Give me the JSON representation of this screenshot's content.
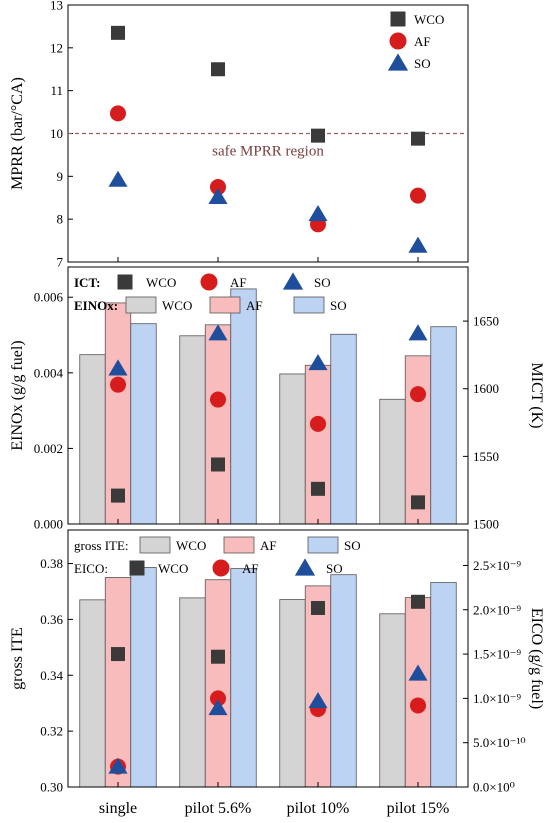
{
  "chart_data": [
    {
      "type": "scatter",
      "categories": [
        "single",
        "pilot 5.6%",
        "pilot 10%",
        "pilot 15%"
      ],
      "ylabel": "MPRR (bar/°CA)",
      "ylim": [
        7,
        13
      ],
      "yticks": [
        "7",
        "8",
        "9",
        "10",
        "11",
        "12",
        "13"
      ],
      "series": [
        {
          "name": "WCO",
          "marker": "square",
          "color": "#3a3a3a",
          "values": [
            12.35,
            11.5,
            9.95,
            9.88
          ]
        },
        {
          "name": "AF",
          "marker": "circle",
          "color": "#d61c1c",
          "values": [
            10.47,
            8.75,
            7.88,
            8.55
          ]
        },
        {
          "name": "SO",
          "marker": "triangle",
          "color": "#1f4e9c",
          "values": [
            8.92,
            8.52,
            8.12,
            7.38
          ]
        }
      ],
      "reference_line": {
        "value": 10,
        "label": "safe MPRR region",
        "color": "#a05c5c"
      },
      "legend": "top-right"
    },
    {
      "type": "bar",
      "categories": [
        "single",
        "pilot 5.6%",
        "pilot 10%",
        "pilot 15%"
      ],
      "ylabel": "EINOx (g/g fuel)",
      "ylim": [
        0,
        0.0068
      ],
      "yticks": [
        "0.000",
        "0.002",
        "0.004",
        "0.006"
      ],
      "ylabel_right": "MICT (K)",
      "ylim_right": [
        1500,
        1690
      ],
      "yticks_right": [
        "1500",
        "1550",
        "1600",
        "1650"
      ],
      "legend_bars_title": "EINOx:",
      "legend_points_title": "ICT:",
      "series": [
        {
          "name": "WCO",
          "color": "#d4d4d4",
          "values": [
            0.00448,
            0.00498,
            0.00397,
            0.0033
          ]
        },
        {
          "name": "AF",
          "color": "#f8bcbc",
          "values": [
            0.00585,
            0.00527,
            0.0042,
            0.00445
          ]
        },
        {
          "name": "SO",
          "color": "#bcd3f4",
          "values": [
            0.0053,
            0.00622,
            0.00502,
            0.00522
          ]
        }
      ],
      "point_series": [
        {
          "name": "WCO",
          "marker": "square",
          "color": "#3a3a3a",
          "values": [
            1521,
            1544,
            1526,
            1516
          ]
        },
        {
          "name": "AF",
          "marker": "circle",
          "color": "#d61c1c",
          "values": [
            1603,
            1592,
            1574,
            1596
          ]
        },
        {
          "name": "SO",
          "marker": "triangle",
          "color": "#1f4e9c",
          "values": [
            1615,
            1641,
            1619,
            1641
          ]
        }
      ],
      "legend": "top-left"
    },
    {
      "type": "bar",
      "categories": [
        "single",
        "pilot 5.6%",
        "pilot 10%",
        "pilot 15%"
      ],
      "ylabel": "gross ITE",
      "ylim": [
        0.3,
        0.392
      ],
      "yticks": [
        "0.30",
        "0.32",
        "0.34",
        "0.36",
        "0.38"
      ],
      "ylabel_right": "EICO (g/g fuel)",
      "ylim_right": [
        0,
        2.9e-09
      ],
      "yticks_right": [
        "0.0×10⁰",
        "5.0×10⁻¹⁰",
        "1.0×10⁻⁹",
        "1.5×10⁻⁹",
        "2.0×10⁻⁹",
        "2.5×10⁻⁹"
      ],
      "legend_bars_title": "gross ITE:",
      "legend_points_title": "EICO:",
      "series": [
        {
          "name": "WCO",
          "color": "#d4d4d4",
          "values": [
            0.367,
            0.3677,
            0.3671,
            0.362
          ]
        },
        {
          "name": "AF",
          "color": "#f8bcbc",
          "values": [
            0.375,
            0.3742,
            0.372,
            0.3678
          ]
        },
        {
          "name": "SO",
          "color": "#bcd3f4",
          "values": [
            0.3786,
            0.3782,
            0.376,
            0.3732
          ]
        }
      ],
      "point_series": [
        {
          "name": "WCO",
          "marker": "square",
          "color": "#3a3a3a",
          "values": [
            1.5e-09,
            1.47e-09,
            2.02e-09,
            2.09e-09
          ]
        },
        {
          "name": "AF",
          "marker": "circle",
          "color": "#d61c1c",
          "values": [
            2.3e-10,
            1e-09,
            8.8e-10,
            9.2e-10
          ]
        },
        {
          "name": "SO",
          "marker": "triangle",
          "color": "#1f4e9c",
          "values": [
            2.3e-10,
            8.9e-10,
            9.7e-10,
            1.28e-09
          ]
        }
      ],
      "legend": "top-left"
    }
  ]
}
